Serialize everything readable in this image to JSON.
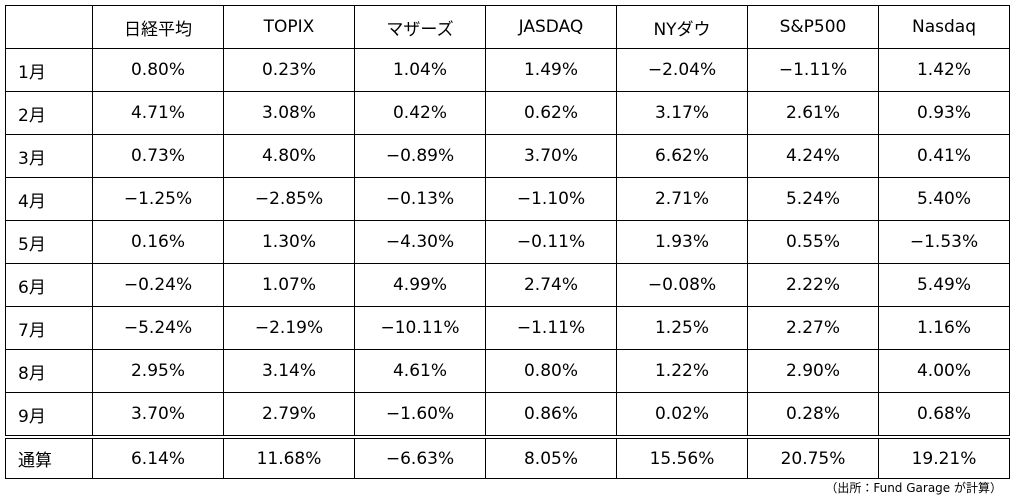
{
  "table": {
    "header": [
      "日経平均",
      "TOPIX",
      "マザーズ",
      "JASDAQ",
      "NYダウ",
      "S&P500",
      "Nasdaq"
    ],
    "rows": [
      [
        "1月",
        "0.80%",
        "0.23%",
        "1.04%",
        "1.49%",
        "−2.04%",
        "−1.11%",
        "1.42%"
      ],
      [
        "2月",
        "4.71%",
        "3.08%",
        "0.42%",
        "0.62%",
        "3.17%",
        "2.61%",
        "0.93%"
      ],
      [
        "3月",
        "0.73%",
        "4.80%",
        "−0.89%",
        "3.70%",
        "6.62%",
        "4.24%",
        "0.41%"
      ],
      [
        "4月",
        "−1.25%",
        "−2.85%",
        "−0.13%",
        "−1.10%",
        "2.71%",
        "5.24%",
        "5.40%"
      ],
      [
        "5月",
        "0.16%",
        "1.30%",
        "−4.30%",
        "−0.11%",
        "1.93%",
        "0.55%",
        "−1.53%"
      ],
      [
        "6月",
        "−0.24%",
        "1.07%",
        "4.99%",
        "2.74%",
        "−0.08%",
        "2.22%",
        "5.49%"
      ],
      [
        "7月",
        "−5.24%",
        "−2.19%",
        "−10.11%",
        "−1.11%",
        "1.25%",
        "2.27%",
        "1.16%"
      ],
      [
        "8月",
        "2.95%",
        "3.14%",
        "4.61%",
        "0.80%",
        "1.22%",
        "2.90%",
        "4.00%"
      ],
      [
        "9月",
        "3.70%",
        "2.79%",
        "−1.60%",
        "0.86%",
        "0.02%",
        "0.28%",
        "0.68%"
      ]
    ],
    "total": [
      "通算",
      "6.14%",
      "11.68%",
      "−6.63%",
      "8.05%",
      "15.56%",
      "20.75%",
      "19.21%"
    ]
  },
  "footnote": "（出所：Fund Garage が計算）"
}
